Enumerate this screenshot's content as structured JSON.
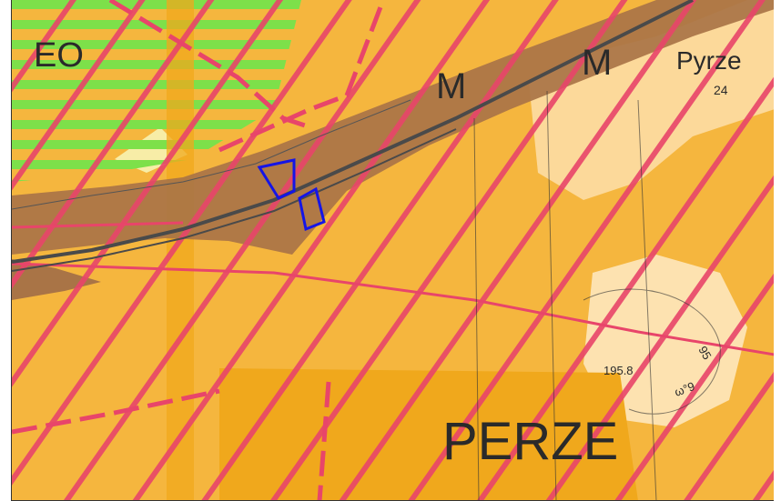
{
  "map": {
    "labels": {
      "zone_eo": "EO",
      "zone_m1": "M",
      "zone_m2": "M",
      "village_small": "Pyrze",
      "house_number": "24",
      "village_big": "PERZE",
      "elevation": "195.8",
      "contour_95": "95",
      "contour_note": "ω°9"
    },
    "colors": {
      "background": "#f5b63e",
      "light_area": "#fcd99a",
      "green_stripe": "#7de04a",
      "pink_hatch": "#e8456a",
      "brown_band": "#a97446",
      "road": "#4a4a4a",
      "dark_zone": "#f0a81c",
      "selection": "#1515e6"
    }
  }
}
